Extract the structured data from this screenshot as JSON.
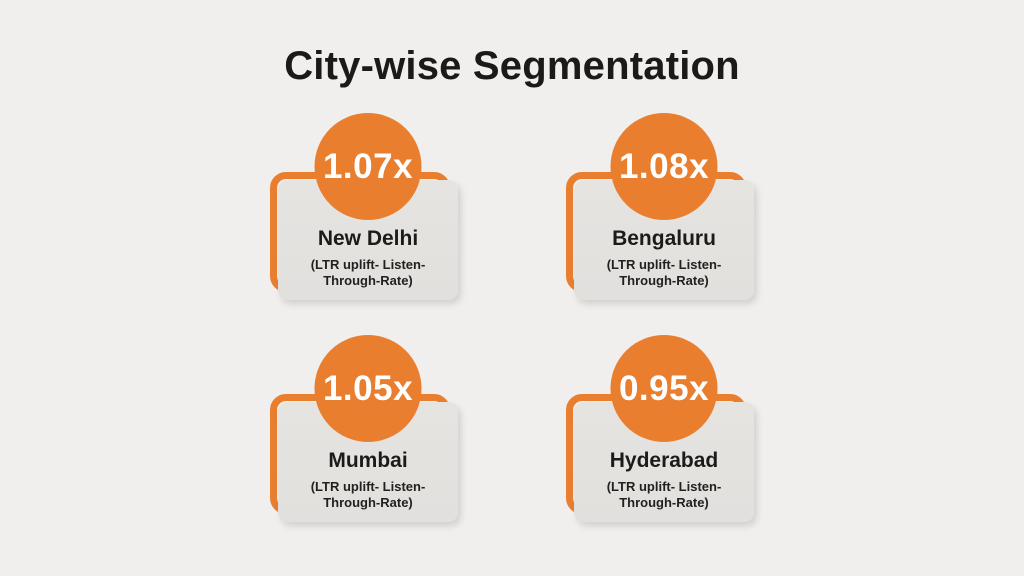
{
  "page": {
    "title": "City-wise Segmentation",
    "background": "#F0EFED"
  },
  "colors": {
    "accent_orange": "#E87E2E",
    "panel_gray": "#E4E2DF",
    "text_dark": "#1D1B1A",
    "badge_text": "#FFFFFF"
  },
  "cards": [
    {
      "value": "1.07x",
      "city": "New Delhi",
      "note_lines": [
        "(LTR uplift- Listen-",
        "Through-Rate)"
      ]
    },
    {
      "value": "1.08x",
      "city": "Bengaluru",
      "note_lines": [
        "(LTR uplift- Listen-",
        "Through-Rate)"
      ]
    },
    {
      "value": "1.05x",
      "city": "Mumbai",
      "note_lines": [
        "(LTR uplift- Listen-",
        "Through-Rate)"
      ]
    },
    {
      "value": "0.95x",
      "city": "Hyderabad",
      "note_lines": [
        "(LTR uplift- Listen-",
        "Through-Rate)"
      ]
    }
  ],
  "chart_data": {
    "type": "table",
    "title": "City-wise Segmentation",
    "metric": "LTR uplift (Listen-Through-Rate)",
    "categories": [
      "New Delhi",
      "Bengaluru",
      "Mumbai",
      "Hyderabad"
    ],
    "values": [
      1.07,
      1.08,
      1.05,
      0.95
    ],
    "value_format": "multiplier (x)",
    "layout": "2x2 stat cards with circular value badges"
  }
}
